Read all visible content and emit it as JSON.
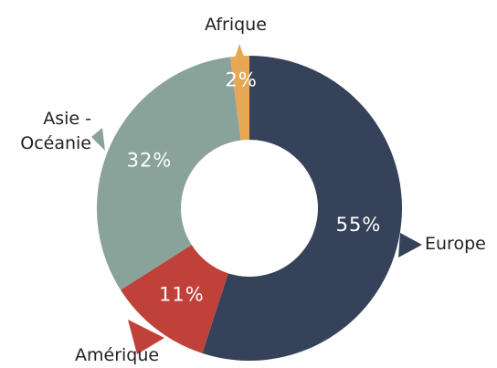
{
  "chart_data": {
    "type": "donut",
    "categories": [
      "Europe",
      "Amérique",
      "Asie - Océanie",
      "Afrique"
    ],
    "values": [
      55,
      11,
      32,
      2
    ],
    "value_labels": [
      "55%",
      "11%",
      "32%",
      "2%"
    ],
    "colors": [
      "#354259",
      "#c0413a",
      "#8aa39a",
      "#e6a855"
    ]
  }
}
